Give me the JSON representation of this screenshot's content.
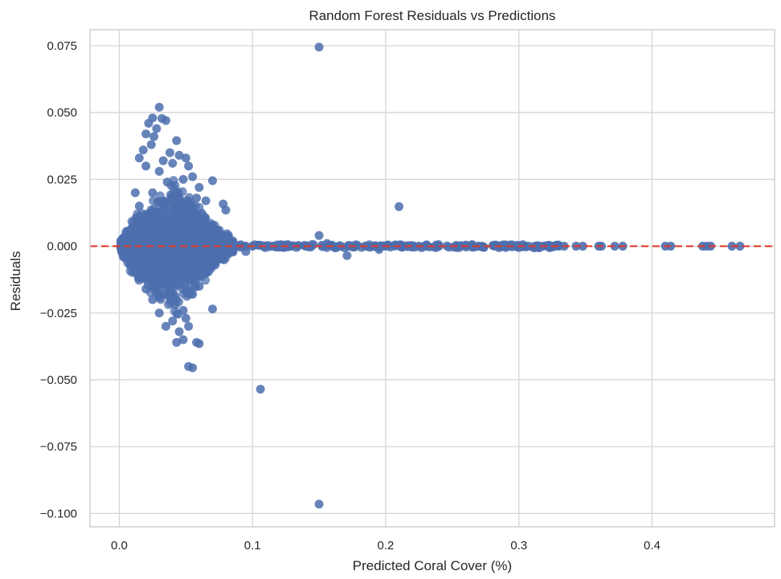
{
  "chart_data": {
    "type": "scatter",
    "title": "Random Forest Residuals vs Predictions",
    "xlabel": "Predicted Coral Cover (%)",
    "ylabel": "Residuals",
    "xlim": [
      -0.022,
      0.492
    ],
    "ylim": [
      -0.105,
      0.081
    ],
    "x_ticks": [
      0.0,
      0.1,
      0.2,
      0.3,
      0.4
    ],
    "x_tick_labels": [
      "0.0",
      "0.1",
      "0.2",
      "0.3",
      "0.4"
    ],
    "y_ticks": [
      0.075,
      0.05,
      0.025,
      0.0,
      -0.025,
      -0.05,
      -0.075,
      -0.1
    ],
    "y_tick_labels": [
      "0.075",
      "0.050",
      "0.025",
      "0.000",
      "−0.025",
      "−0.050",
      "−0.075",
      "−0.100"
    ],
    "grid": true,
    "point_color": "#4c6fae",
    "grid_color": "#d5d5d5",
    "reference_line": {
      "y": 0.0,
      "color": "#e0392b",
      "style": "dashed"
    },
    "points": [
      [
        0.15,
        0.0745
      ],
      [
        0.15,
        -0.0965
      ],
      [
        0.106,
        -0.0535
      ],
      [
        0.21,
        0.0148
      ],
      [
        0.15,
        0.004
      ],
      [
        0.156,
        0.001
      ],
      [
        0.171,
        -0.0035
      ],
      [
        0.03,
        0.052
      ],
      [
        0.025,
        0.048
      ],
      [
        0.035,
        0.047
      ],
      [
        0.032,
        0.0478
      ],
      [
        0.022,
        0.046
      ],
      [
        0.028,
        0.044
      ],
      [
        0.02,
        0.042
      ],
      [
        0.026,
        0.041
      ],
      [
        0.043,
        0.0395
      ],
      [
        0.018,
        0.036
      ],
      [
        0.024,
        0.038
      ],
      [
        0.038,
        0.035
      ],
      [
        0.045,
        0.034
      ],
      [
        0.015,
        0.033
      ],
      [
        0.033,
        0.032
      ],
      [
        0.05,
        0.033
      ],
      [
        0.02,
        0.03
      ],
      [
        0.04,
        0.031
      ],
      [
        0.052,
        0.03
      ],
      [
        0.055,
        0.026
      ],
      [
        0.03,
        0.028
      ],
      [
        0.07,
        0.0245
      ],
      [
        0.048,
        0.025
      ],
      [
        0.036,
        0.024
      ],
      [
        0.012,
        0.02
      ],
      [
        0.06,
        0.022
      ],
      [
        0.058,
        0.018
      ],
      [
        0.065,
        0.017
      ],
      [
        0.078,
        0.0158
      ],
      [
        0.08,
        0.0135
      ],
      [
        0.025,
        0.02
      ],
      [
        0.045,
        0.018
      ],
      [
        0.015,
        0.015
      ],
      [
        0.022,
        0.012
      ],
      [
        0.032,
        0.016
      ],
      [
        0.042,
        0.014
      ],
      [
        0.055,
        0.012
      ],
      [
        0.062,
        0.01
      ],
      [
        0.07,
        0.008
      ],
      [
        0.075,
        0.006
      ],
      [
        0.082,
        0.004
      ],
      [
        0.052,
        -0.045
      ],
      [
        0.055,
        -0.0455
      ],
      [
        0.06,
        -0.0365
      ],
      [
        0.058,
        -0.036
      ],
      [
        0.048,
        -0.035
      ],
      [
        0.043,
        -0.036
      ],
      [
        0.045,
        -0.032
      ],
      [
        0.035,
        -0.03
      ],
      [
        0.052,
        -0.03
      ],
      [
        0.05,
        -0.027
      ],
      [
        0.04,
        -0.028
      ],
      [
        0.07,
        -0.0235
      ],
      [
        0.03,
        -0.025
      ],
      [
        0.048,
        -0.024
      ],
      [
        0.025,
        -0.02
      ],
      [
        0.055,
        -0.018
      ],
      [
        0.02,
        -0.016
      ],
      [
        0.06,
        -0.015
      ],
      [
        0.042,
        -0.022
      ],
      [
        0.065,
        -0.01
      ],
      [
        0.072,
        -0.007
      ],
      [
        0.015,
        -0.012
      ],
      [
        0.035,
        -0.018
      ],
      [
        0.01,
        -0.008
      ],
      [
        0.078,
        -0.004
      ],
      [
        0.085,
        -0.002
      ],
      [
        0.095,
        -0.002
      ],
      [
        0.195,
        -0.0012
      ]
    ],
    "zero_band_points_x": [
      0.088,
      0.095,
      0.1,
      0.108,
      0.115,
      0.122,
      0.13,
      0.14,
      0.16,
      0.175,
      0.185,
      0.2,
      0.215,
      0.225,
      0.24,
      0.255,
      0.27,
      0.282,
      0.29,
      0.3,
      0.305,
      0.312,
      0.318,
      0.322,
      0.326,
      0.33,
      0.334,
      0.343,
      0.348,
      0.36,
      0.362,
      0.372,
      0.378,
      0.41,
      0.414,
      0.438,
      0.441,
      0.444,
      0.46,
      0.466
    ],
    "dense_cluster": {
      "x_range": [
        0.0,
        0.09
      ],
      "residual_range": [
        -0.03,
        0.03
      ],
      "point_count_estimate": 2500
    }
  }
}
